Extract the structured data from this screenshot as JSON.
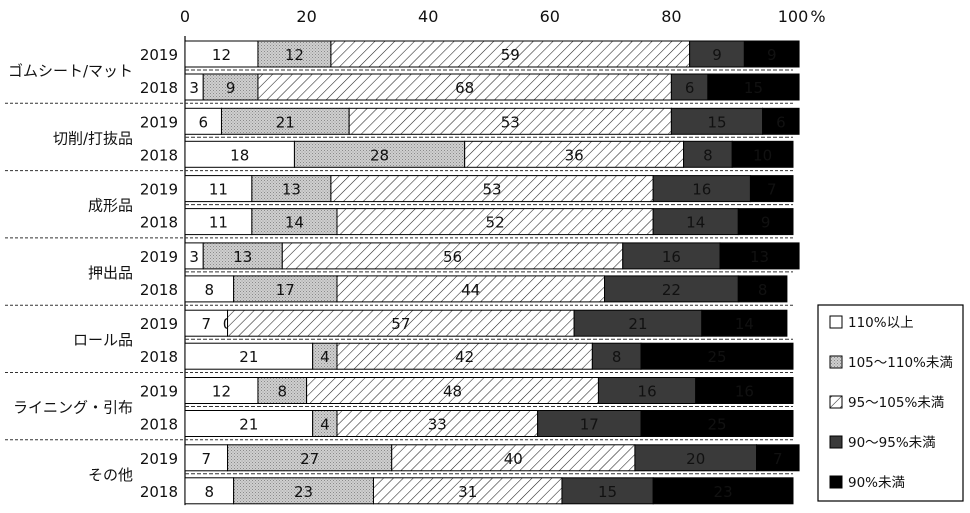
{
  "chart_data": {
    "type": "bar",
    "orientation": "horizontal",
    "stacked": true,
    "percent_unit": "%",
    "xlim": [
      0,
      100
    ],
    "xticks": [
      "0",
      "20",
      "40",
      "60",
      "80",
      "100"
    ],
    "grid": false,
    "legend_position": "right",
    "series": [
      {
        "name": "110%以上",
        "pattern": "white",
        "color": "#ffffff"
      },
      {
        "name": "105～110%未満",
        "pattern": "dotted-gray",
        "color": "#c8c8c8"
      },
      {
        "name": "95～105%未満",
        "pattern": "diagonal-hatch",
        "color": "#ffffff"
      },
      {
        "name": "90～95%未満",
        "pattern": "dark-gray",
        "color": "#3a3a3a"
      },
      {
        "name": "90%未満",
        "pattern": "black",
        "color": "#000000"
      }
    ],
    "groups": [
      {
        "name": "ゴムシート/マット",
        "rows": [
          {
            "year": "2019",
            "values": [
              12,
              12,
              59,
              9,
              9
            ]
          },
          {
            "year": "2018",
            "values": [
              3,
              9,
              68,
              6,
              15
            ]
          }
        ]
      },
      {
        "name": "切削/打抜品",
        "rows": [
          {
            "year": "2019",
            "values": [
              6,
              21,
              53,
              15,
              6
            ]
          },
          {
            "year": "2018",
            "values": [
              18,
              28,
              36,
              8,
              10
            ]
          }
        ]
      },
      {
        "name": "成形品",
        "rows": [
          {
            "year": "2019",
            "values": [
              11,
              13,
              53,
              16,
              7
            ]
          },
          {
            "year": "2018",
            "values": [
              11,
              14,
              52,
              14,
              9
            ]
          }
        ]
      },
      {
        "name": "押出品",
        "rows": [
          {
            "year": "2019",
            "values": [
              3,
              13,
              56,
              16,
              13
            ]
          },
          {
            "year": "2018",
            "values": [
              8,
              17,
              44,
              22,
              8
            ]
          }
        ]
      },
      {
        "name": "ロール品",
        "rows": [
          {
            "year": "2019",
            "values": [
              7,
              0,
              57,
              21,
              14
            ]
          },
          {
            "year": "2018",
            "values": [
              21,
              4,
              42,
              8,
              25
            ]
          }
        ]
      },
      {
        "name": "ライニング・引布",
        "rows": [
          {
            "year": "2019",
            "values": [
              12,
              8,
              48,
              16,
              16
            ]
          },
          {
            "year": "2018",
            "values": [
              21,
              4,
              33,
              17,
              25
            ]
          }
        ]
      },
      {
        "name": "その他",
        "rows": [
          {
            "year": "2019",
            "values": [
              7,
              27,
              40,
              20,
              7
            ]
          },
          {
            "year": "2018",
            "values": [
              8,
              23,
              31,
              15,
              23
            ]
          }
        ]
      }
    ]
  }
}
